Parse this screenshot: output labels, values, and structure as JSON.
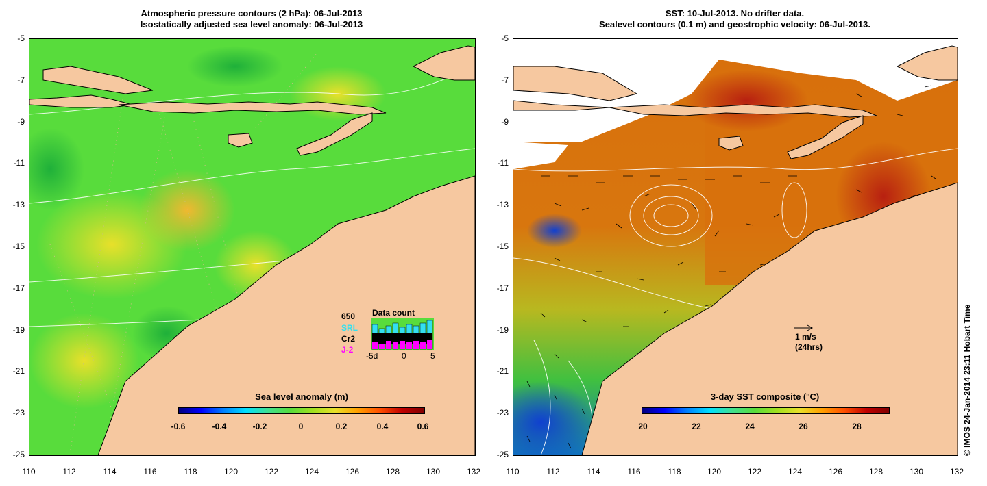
{
  "left_panel": {
    "title_line1": "Atmospheric pressure contours (2 hPa): 06-Jul-2013",
    "title_line2": "Isostatically adjusted sea level anomaly: 06-Jul-2013",
    "y_ticks": [
      "-5",
      "-7",
      "-9",
      "-11",
      "-13",
      "-15",
      "-17",
      "-19",
      "-21",
      "-23",
      "-25"
    ],
    "x_ticks": [
      "110",
      "112",
      "114",
      "116",
      "118",
      "120",
      "122",
      "124",
      "126",
      "128",
      "130",
      "132"
    ],
    "colorbar_title": "Sea level anomaly (m)",
    "colorbar_ticks": [
      "-0.6",
      "-0.4",
      "-0.2",
      "0",
      "0.2",
      "0.4",
      "0.6"
    ],
    "data_count": {
      "title": "Data count",
      "max_label": "650",
      "series": [
        "SRL",
        "Cr2",
        "J-2"
      ],
      "series_colors": [
        "#33e0f0",
        "#000000",
        "#ff00ff"
      ],
      "x_ticks": [
        "-5d",
        "0",
        "5"
      ]
    }
  },
  "right_panel": {
    "title_line1": "SST: 10-Jul-2013. No drifter data.",
    "title_line2": "Sealevel contours (0.1 m) and geostrophic velocity: 06-Jul-2013.",
    "y_ticks": [
      "-5",
      "-7",
      "-9",
      "-11",
      "-13",
      "-15",
      "-17",
      "-19",
      "-21",
      "-23",
      "-25"
    ],
    "x_ticks": [
      "110",
      "112",
      "114",
      "116",
      "118",
      "120",
      "122",
      "124",
      "126",
      "128",
      "130",
      "132"
    ],
    "colorbar_title": "3-day SST composite (°C)",
    "colorbar_ticks": [
      "20",
      "22",
      "24",
      "26",
      "28"
    ],
    "velocity_scale_line1": "1 m/s",
    "velocity_scale_line2": "(24hrs)"
  },
  "credit": "© IMOS 24-Jan-2014 23:11 Hobart Time",
  "colors": {
    "land": "#f6c8a0",
    "ocean_sla": "#4ee04a",
    "ocean_sst": "#d9700c"
  }
}
